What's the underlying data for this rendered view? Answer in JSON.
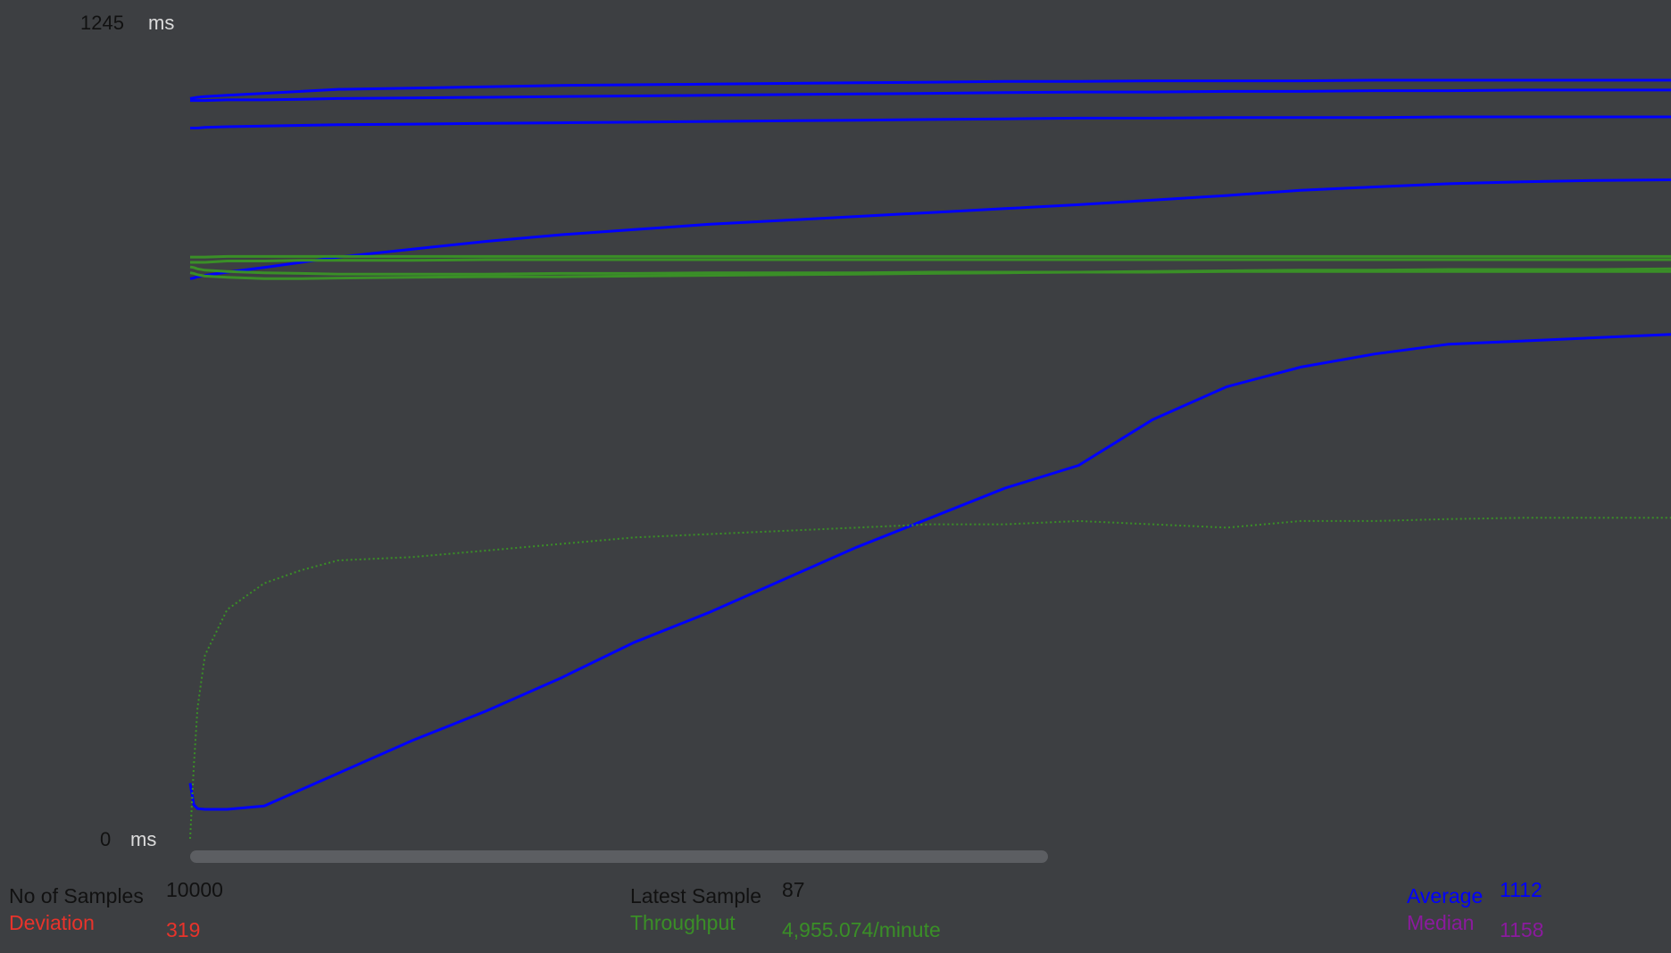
{
  "chart_data": {
    "type": "line",
    "title": "",
    "ylabel": "ms",
    "xlabel": "",
    "ylim": [
      0,
      1245
    ],
    "y_max_label": "1245",
    "y_min_label": "0",
    "y_unit": "ms",
    "grid": false,
    "x": [
      0,
      25,
      50,
      100,
      250,
      500,
      750,
      1000,
      1500,
      2000,
      2500,
      3000,
      3500,
      4000,
      4500,
      5000,
      5500,
      6000,
      6500,
      7000,
      7500,
      8000,
      8500,
      9000,
      9500,
      10000
    ],
    "series": [
      {
        "name": "Average",
        "color": "#0000ff",
        "style": "line",
        "values": [
          85,
          52,
          46,
          45,
          45,
          50,
          75,
          100,
          150,
          195,
          245,
          300,
          345,
          395,
          445,
          490,
          535,
          570,
          640,
          690,
          720,
          740,
          755,
          760,
          765,
          770
        ]
      },
      {
        "name": "Median",
        "color": "#0000ff",
        "style": "line",
        "values": [
          1130,
          1131,
          1132,
          1133,
          1135,
          1138,
          1141,
          1144,
          1146,
          1148,
          1150,
          1151,
          1152,
          1153,
          1154,
          1155,
          1156,
          1156,
          1157,
          1157,
          1157,
          1158,
          1158,
          1158,
          1158,
          1158
        ]
      },
      {
        "name": "Deviation",
        "color": "#3a8f27",
        "style": "dots",
        "values": [
          0,
          110,
          200,
          280,
          350,
          390,
          410,
          425,
          430,
          440,
          450,
          460,
          465,
          470,
          475,
          480,
          480,
          485,
          480,
          475,
          485,
          485,
          488,
          490,
          490,
          490
        ]
      },
      {
        "name": "Throughput",
        "color": "#3a8f27",
        "style": "line",
        "values": [
          880,
          880,
          880,
          880,
          882,
          882,
          883,
          883,
          883,
          884,
          884,
          884,
          884,
          884,
          884,
          884,
          884,
          884,
          884,
          884,
          884,
          884,
          884,
          884,
          884,
          884
        ]
      }
    ],
    "extra_lines": [
      {
        "color": "#0000ff",
        "values": [
          1127,
          1127,
          1127,
          1127,
          1128,
          1128,
          1129,
          1130,
          1131,
          1132,
          1133,
          1134,
          1135,
          1136,
          1137,
          1138,
          1139,
          1140,
          1140,
          1141,
          1141,
          1142,
          1142,
          1143,
          1143,
          1143
        ]
      },
      {
        "color": "#0000ff",
        "values": [
          1085,
          1085,
          1085,
          1086,
          1087,
          1088,
          1089,
          1090,
          1091,
          1092,
          1093,
          1094,
          1095,
          1096,
          1097,
          1098,
          1099,
          1100,
          1100,
          1101,
          1101,
          1101,
          1102,
          1102,
          1102,
          1102
        ]
      },
      {
        "color": "#0000ff",
        "values": [
          855,
          856,
          858,
          860,
          865,
          872,
          880,
          888,
          900,
          912,
          922,
          930,
          938,
          944,
          950,
          956,
          962,
          968,
          975,
          982,
          990,
          995,
          1000,
          1003,
          1005,
          1006
        ]
      },
      {
        "color": "#3a8f27",
        "values": [
          888,
          888,
          888,
          888,
          889,
          889,
          889,
          889,
          889,
          889,
          889,
          889,
          889,
          889,
          889,
          889,
          889,
          889,
          889,
          889,
          889,
          889,
          889,
          889,
          889,
          889
        ]
      },
      {
        "color": "#3a8f27",
        "values": [
          873,
          872,
          870,
          868,
          866,
          864,
          863,
          862,
          862,
          862,
          863,
          863,
          864,
          864,
          864,
          865,
          865,
          865,
          865,
          866,
          866,
          866,
          866,
          866,
          866,
          866
        ]
      },
      {
        "color": "#3a8f27",
        "values": [
          864,
          863,
          861,
          859,
          857,
          855,
          855,
          856,
          857,
          858,
          858,
          859,
          860,
          861,
          862,
          863,
          864,
          865,
          866,
          867,
          868,
          868,
          869,
          869,
          869,
          870
        ]
      }
    ]
  },
  "stats": {
    "samples": {
      "label": "No of Samples",
      "value": "10000",
      "color": "#111111"
    },
    "deviation": {
      "label": "Deviation",
      "value": "319",
      "color": "#e8332b"
    },
    "latest": {
      "label": "Latest Sample",
      "value": "87",
      "color": "#111111"
    },
    "throughput": {
      "label": "Throughput",
      "value": "4,955.074/minute",
      "color": "#3a8f27"
    },
    "average": {
      "label": "Average",
      "value": "1112",
      "color": "#0000ff"
    },
    "median": {
      "label": "Median",
      "value": "1158",
      "color": "#8b1a9e"
    }
  }
}
